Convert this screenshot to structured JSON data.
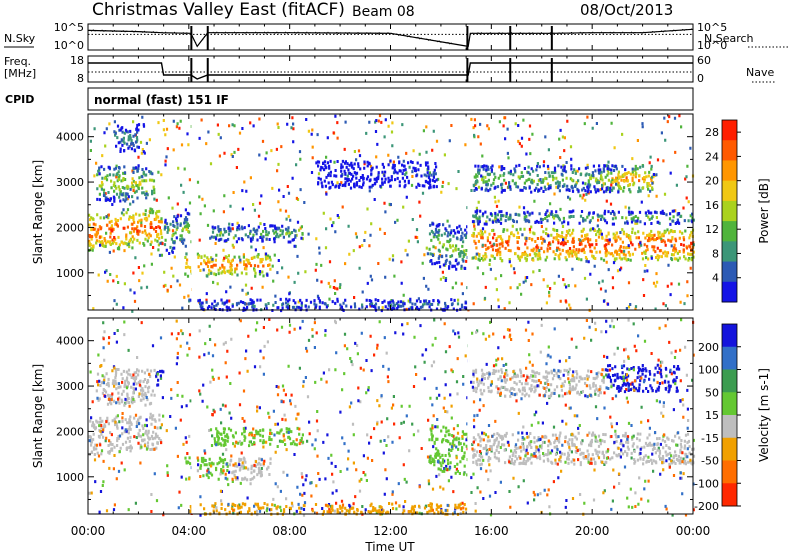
{
  "header": {
    "title": "Christmas Valley East (fitACF)",
    "beam": "Beam 08",
    "date": "08/Oct/2013",
    "cpid_label": "CPID",
    "cpid_value": "normal (fast) 151 IF"
  },
  "chart_data": [
    {
      "type": "line",
      "panel": "noise",
      "left_label": "N.Sky",
      "right_label": "N.Search",
      "left_ticks": [
        "10^5",
        "10^0"
      ],
      "right_ticks": [
        "10^5",
        "10^0"
      ],
      "x": [
        "00:00",
        "02:00",
        "02:55",
        "04:05",
        "04:20",
        "04:45",
        "05:00",
        "08:00",
        "12:00",
        "15:05",
        "15:10",
        "16:45",
        "18:25",
        "20:00",
        "22:00",
        "23:59"
      ],
      "series": [
        {
          "values": [
            2.9,
            2.7,
            2.5,
            2.4,
            0.1,
            2.5,
            2.5,
            2.5,
            2.4,
            0.1,
            2.4,
            2.4,
            2.4,
            2.5,
            2.5,
            3.1
          ]
        }
      ],
      "gaps": [
        [
          "04:05",
          "04:20"
        ],
        [
          "04:45",
          "05:00"
        ],
        [
          "15:05",
          "15:15"
        ],
        [
          "16:45",
          "16:50"
        ],
        [
          "18:25",
          "18:30"
        ]
      ]
    },
    {
      "type": "line",
      "panel": "frequency",
      "left_label": "Freq.",
      "left_unit": "[MHz]",
      "right_label": "Nave",
      "left_ticks": [
        "18",
        "8"
      ],
      "right_ticks": [
        "60",
        "0"
      ],
      "x": [
        "00:00",
        "02:55",
        "03:00",
        "04:05",
        "04:20",
        "04:45",
        "05:00",
        "15:05",
        "15:10",
        "16:45",
        "16:50",
        "18:25",
        "18:30",
        "23:59"
      ],
      "series": [
        {
          "name": "Freq.",
          "values": [
            16.5,
            16.5,
            10.5,
            10.5,
            8.5,
            10.5,
            10.5,
            10.5,
            16.5,
            16.5,
            16.5,
            16.5,
            16.5,
            16.5
          ]
        }
      ]
    },
    {
      "type": "heatmap",
      "panel": "power",
      "ylabel": "Slant Range [km]",
      "yticks": [
        1000,
        2000,
        3000,
        4000
      ],
      "ylim": [
        180,
        4500
      ],
      "colorbar_label": "Power [dB]",
      "colorbar_ticks": [
        4,
        8,
        12,
        16,
        20,
        24,
        28
      ],
      "colorbar_range": [
        0,
        30
      ],
      "colors": [
        "#1414e6",
        "#2c5ab4",
        "#3c9678",
        "#50b43c",
        "#aad21e",
        "#f0c814",
        "#ff9600",
        "#ff5a00",
        "#ff1e00"
      ],
      "bands": [
        {
          "t0": 0.0,
          "t1": 2.9,
          "r0": 1500,
          "r1": 2300,
          "slope": 0.05,
          "level": 26
        },
        {
          "t0": 0.3,
          "t1": 2.6,
          "r0": 2600,
          "r1": 3400,
          "slope": 0.0,
          "level": 16
        },
        {
          "t0": 1.0,
          "t1": 2.2,
          "r0": 3700,
          "r1": 4300,
          "slope": 0.0,
          "level": 10
        },
        {
          "t0": 3.0,
          "t1": 4.0,
          "r0": 1400,
          "r1": 2200,
          "slope": 0.2,
          "level": 14
        },
        {
          "t0": 3.8,
          "t1": 7.2,
          "r0": 950,
          "r1": 1450,
          "slope": 0.0,
          "level": 24
        },
        {
          "t0": 4.8,
          "t1": 8.5,
          "r0": 1700,
          "r1": 2100,
          "slope": 0.0,
          "level": 12
        },
        {
          "t0": 4.0,
          "t1": 15.0,
          "r0": 200,
          "r1": 450,
          "slope": 0.0,
          "level": 8
        },
        {
          "t0": 9.0,
          "t1": 13.8,
          "r0": 2900,
          "r1": 3500,
          "slope": 0.0,
          "level": 4
        },
        {
          "t0": 13.5,
          "t1": 15.1,
          "r0": 1200,
          "r1": 2200,
          "slope": -0.1,
          "level": 14
        },
        {
          "t0": 15.2,
          "t1": 24.0,
          "r0": 1300,
          "r1": 2000,
          "slope": 0.0,
          "level": 27
        },
        {
          "t0": 15.2,
          "t1": 24.0,
          "r0": 2100,
          "r1": 2400,
          "slope": 0.0,
          "level": 12
        },
        {
          "t0": 15.2,
          "t1": 21.0,
          "r0": 2800,
          "r1": 3400,
          "slope": 0.0,
          "level": 14
        },
        {
          "t0": 20.5,
          "t1": 22.5,
          "r0": 2800,
          "r1": 3400,
          "slope": 0.0,
          "level": 22
        }
      ],
      "gaps": [
        [
          4.1,
          4.3
        ],
        [
          15.05,
          15.15
        ]
      ]
    },
    {
      "type": "heatmap",
      "panel": "velocity",
      "ylabel": "Slant Range [km]",
      "yticks": [
        1000,
        2000,
        3000,
        4000
      ],
      "ylim": [
        180,
        4500
      ],
      "colorbar_label": "Velocity [m s-1]",
      "colorbar_ticks": [
        200,
        100,
        50,
        15,
        -15,
        -50,
        -100,
        -200
      ],
      "colors": [
        "#1414dc",
        "#3270c8",
        "#3c9c50",
        "#64c832",
        "#bebebe",
        "#f0a000",
        "#ff6e00",
        "#ff2800"
      ],
      "bands": [
        {
          "t0": 0.0,
          "t1": 2.9,
          "r0": 1500,
          "r1": 2300,
          "slope": 0.05,
          "cls": 4
        },
        {
          "t0": 0.3,
          "t1": 2.6,
          "r0": 2600,
          "r1": 3400,
          "slope": 0.0,
          "cls": 4
        },
        {
          "t0": 2.6,
          "t1": 3.0,
          "r0": 3000,
          "r1": 3400,
          "slope": 0.0,
          "cls": 0
        },
        {
          "t0": 3.8,
          "t1": 5.5,
          "r0": 950,
          "r1": 1450,
          "slope": 0.0,
          "cls": 3
        },
        {
          "t0": 5.5,
          "t1": 7.2,
          "r0": 950,
          "r1": 1450,
          "slope": 0.0,
          "cls": 4
        },
        {
          "t0": 4.8,
          "t1": 8.5,
          "r0": 1700,
          "r1": 2100,
          "slope": 0.0,
          "cls": 3
        },
        {
          "t0": 4.0,
          "t1": 15.0,
          "r0": 200,
          "r1": 450,
          "slope": 0.0,
          "cls": 5
        },
        {
          "t0": 13.5,
          "t1": 15.1,
          "r0": 1200,
          "r1": 2200,
          "slope": -0.1,
          "cls": 3
        },
        {
          "t0": 15.2,
          "t1": 24.0,
          "r0": 1300,
          "r1": 2000,
          "slope": 0.0,
          "cls": 4
        },
        {
          "t0": 15.2,
          "t1": 20.5,
          "r0": 2800,
          "r1": 3400,
          "slope": 0.0,
          "cls": 4
        },
        {
          "t0": 20.5,
          "t1": 23.5,
          "r0": 2900,
          "r1": 3500,
          "slope": 0.0,
          "cls": 0
        }
      ],
      "gaps": [
        [
          4.1,
          4.3
        ],
        [
          15.05,
          15.15
        ]
      ]
    }
  ],
  "x_axis": {
    "label": "Time UT",
    "ticks": [
      "00:00",
      "04:00",
      "08:00",
      "12:00",
      "16:00",
      "20:00",
      "00:00"
    ],
    "range_hours": [
      0,
      24
    ]
  }
}
